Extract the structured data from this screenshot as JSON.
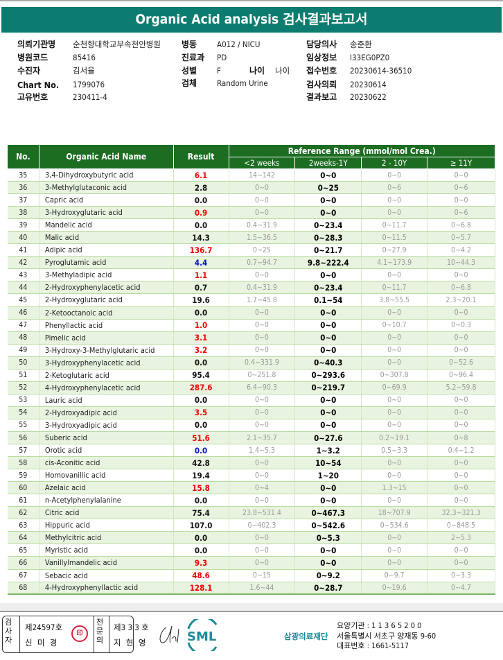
{
  "title": "Organic Acid analysis 검사결과보고서",
  "info": {
    "inst_label": "의뢰기관명",
    "inst": "순천향대학교부속천안병원",
    "code_label": "병원코드",
    "code": "85416",
    "patient_label": "수진자",
    "patient": "김서율",
    "chart_label": "Chart No.",
    "chart": "1799076",
    "uid_label": "고유번호",
    "uid": "230411-4",
    "ward_label": "병동",
    "ward": "A012 / NICU",
    "dept_label": "진료과",
    "dept": "PD",
    "sex_label": "성별",
    "sex": "F",
    "age_label": "나이",
    "age": "나이",
    "specimen_label": "검체",
    "specimen": "Random Urine",
    "doctor_label": "담당의사",
    "doctor": "송준환",
    "clinical_label": "임상정보",
    "clinical": "I33EG0PZ0",
    "receipt_label": "접수번호",
    "receipt": "20230614-36510",
    "request_label": "검사의뢰",
    "request": "20230614",
    "report_label": "결과보고",
    "report": "20230622"
  },
  "table": {
    "headers": {
      "no": "No.",
      "name": "Organic Acid Name",
      "result": "Result",
      "ref": "Reference Range (mmol/mol Crea.)",
      "r1": "<2 weeks",
      "r2": "2weeks-1Y",
      "r3": "2 - 10Y",
      "r4": "≥ 11Y"
    },
    "rows": [
      [
        "35",
        "3,4-Dihydroxybutyric acid",
        "6.1",
        "high",
        "14~142",
        "0~0",
        "0~0",
        "0~0"
      ],
      [
        "36",
        "3-Methylglutaconic acid",
        "2.8",
        "normal",
        "0~0",
        "0~25",
        "0~6",
        "0~6"
      ],
      [
        "37",
        "Capric acid",
        "0.0",
        "normal",
        "0~0",
        "0~0",
        "0~0",
        "0~0"
      ],
      [
        "38",
        "3-Hydroxyglutaric acid",
        "0.9",
        "high",
        "0~0",
        "0~0",
        "0~0",
        "0~6"
      ],
      [
        "39",
        "Mandelic acid",
        "0.0",
        "normal",
        "0.4~31.9",
        "0~23.4",
        "0~11.7",
        "0~6.8"
      ],
      [
        "40",
        "Malic acid",
        "14.3",
        "normal",
        "1.5~36.5",
        "0~28.3",
        "0~11.5",
        "0~5.7"
      ],
      [
        "41",
        "Adipic acid",
        "136.7",
        "high",
        "0~25",
        "0~21.7",
        "0~27.9",
        "0~4.2"
      ],
      [
        "42",
        "Pyroglutamic acid",
        "4.4",
        "low",
        "0.7~94.7",
        "9.8~222.4",
        "4.1~173.9",
        "10~44.3"
      ],
      [
        "43",
        "3-Methyladipic acid",
        "1.1",
        "high",
        "0~0",
        "0~0",
        "0~0",
        "0~0"
      ],
      [
        "44",
        "2-Hydroxyphenylacetic acid",
        "0.7",
        "normal",
        "0.4~31.9",
        "0~23.4",
        "0~11.7",
        "0~6.8"
      ],
      [
        "45",
        "2-Hydroxyglutaric acid",
        "19.6",
        "normal",
        "1.7~45.8",
        "0.1~54",
        "3.8~55.5",
        "2.3~20.1"
      ],
      [
        "46",
        "2-Ketooctanoic acid",
        "0.0",
        "normal",
        "0~0",
        "0~0",
        "0~0",
        "0~0"
      ],
      [
        "47",
        "Phenyllactic acid",
        "1.0",
        "high",
        "0~0",
        "0~0",
        "0~10.7",
        "0~0.3"
      ],
      [
        "48",
        "Pimelic acid",
        "3.1",
        "high",
        "0~0",
        "0~0",
        "0~0",
        "0~0"
      ],
      [
        "49",
        "3-Hydroxy-3-Methylglutaric acid",
        "3.2",
        "high",
        "0~0",
        "0~0",
        "0~0",
        "0~0"
      ],
      [
        "50",
        "3-Hydroxyphenylacetic acid",
        "0.0",
        "normal",
        "0.4~331.9",
        "0~40.3",
        "0~0",
        "0~52.6"
      ],
      [
        "51",
        "2-Ketoglutaric acid",
        "95.4",
        "normal",
        "0~251.8",
        "0~293.6",
        "0~307.8",
        "0~96.4"
      ],
      [
        "52",
        "4-Hydroxyphenylacetic acid",
        "287.6",
        "high",
        "6.4~90.3",
        "0~219.7",
        "0~69.9",
        "5.2~59.8"
      ],
      [
        "53",
        "Lauric acid",
        "0.0",
        "normal",
        "0~0",
        "0~0",
        "0~0",
        "0~0"
      ],
      [
        "54",
        "2-Hydroxyadipic acid",
        "3.5",
        "high",
        "0~0",
        "0~0",
        "0~0",
        "0~0"
      ],
      [
        "55",
        "3-Hydroxyadipic acid",
        "0.0",
        "normal",
        "0~0",
        "0~0",
        "0~0",
        "0~0"
      ],
      [
        "56",
        "Suberic acid",
        "51.6",
        "high",
        "2.1~35.7",
        "0~27.6",
        "0.2~19.1",
        "0~8"
      ],
      [
        "57",
        "Orotic acid",
        "0.0",
        "low",
        "1.4~5.3",
        "1~3.2",
        "0.5~3.3",
        "0.4~1.2"
      ],
      [
        "58",
        "cis-Aconitic acid",
        "42.8",
        "normal",
        "0~0",
        "10~54",
        "0~0",
        "0~0"
      ],
      [
        "59",
        "Homovanillic acid",
        "19.4",
        "normal",
        "0~0",
        "1~20",
        "0~0",
        "0~0"
      ],
      [
        "60",
        "Azelaic acid",
        "15.8",
        "high",
        "0~4",
        "0~0",
        "1.3~15",
        "0~0"
      ],
      [
        "61",
        "n-Acetylphenylalanine",
        "0.0",
        "normal",
        "0~0",
        "0~0",
        "0~0",
        "0~0"
      ],
      [
        "62",
        "Citric acid",
        "75.4",
        "normal",
        "23.8~531.4",
        "0~467.3",
        "18~707.9",
        "32.3~321.3"
      ],
      [
        "63",
        "Hippuric acid",
        "107.0",
        "normal",
        "0~402.3",
        "0~542.6",
        "0~534.6",
        "0~848.5"
      ],
      [
        "64",
        "Methylcitric acid",
        "0.0",
        "normal",
        "0~0",
        "0~5.3",
        "0~0",
        "2~5.3"
      ],
      [
        "65",
        "Myristic acid",
        "0.0",
        "normal",
        "0~0",
        "0~0",
        "0~0",
        "0~0"
      ],
      [
        "66",
        "Vanillylmandelic acid",
        "9.3",
        "high",
        "0~0",
        "0~0",
        "0~0",
        "0~0"
      ],
      [
        "67",
        "Sebacic acid",
        "48.6",
        "high",
        "0~15",
        "0~9.2",
        "0~9.7",
        "0~3.3"
      ],
      [
        "68",
        "4-Hydroxyphenyllactic acid",
        "128.1",
        "high",
        "1.6~44",
        "0~28.7",
        "0~19.6",
        "0~4.7"
      ]
    ]
  },
  "footer": {
    "tester_label": "검사자",
    "tester_no": "제24597호",
    "tester": "신 미 경",
    "tester_stamp": "신미경",
    "specialist_label": "전문의",
    "specialist_no": "제3 3 3 호",
    "specialist": "지 현 영",
    "logo_text": "SML",
    "org": "삼광의료재단",
    "code_line": "요양기관 : 1 1 3 6 5 2 0 0",
    "address": "서울특별시 서초구 양재동 9-60",
    "phone": "대표번호 : 1661-5117"
  },
  "colors": {
    "title_bar": "#0d7c70",
    "header": "#1c6d22",
    "row_alt": "#e9f4e0",
    "high": "#e00000",
    "low": "#0010c8"
  }
}
